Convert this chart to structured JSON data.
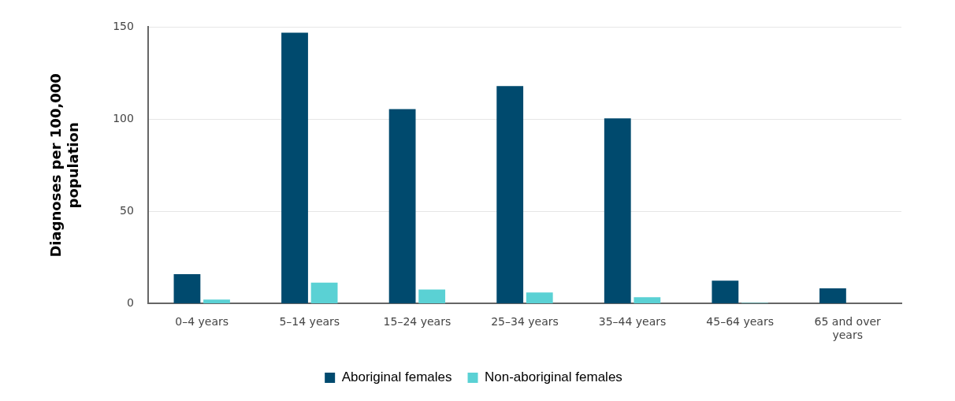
{
  "chart_data": {
    "type": "bar",
    "ylabel": "Diagnoses per 100,000 population",
    "categories": [
      "0–4 years",
      "5–14 years",
      "15–24 years",
      "25–34 years",
      "35–44 years",
      "45–64 years",
      "65 and over years"
    ],
    "series": [
      {
        "name": "Aboriginal females",
        "color": "#004a6e",
        "values": [
          16,
          147,
          105.5,
          118,
          100.5,
          12.5,
          8.3
        ]
      },
      {
        "name": "Non-aboriginal females",
        "color": "#5ad1d4",
        "values": [
          2.2,
          11.4,
          7.7,
          6,
          3.5,
          0.4,
          0
        ]
      }
    ],
    "ylim": [
      0,
      150
    ],
    "yticks": [
      0,
      50,
      100,
      150
    ],
    "grid": "y",
    "legend": "bottom"
  }
}
